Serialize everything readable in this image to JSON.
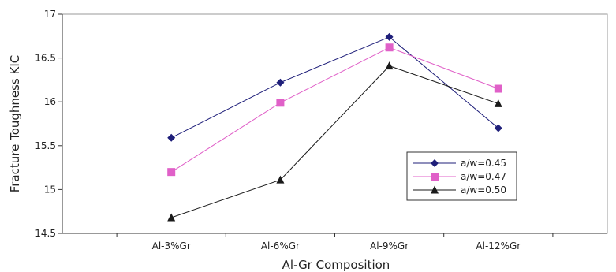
{
  "chart_data": {
    "type": "line",
    "title": "",
    "xlabel": "Al-Gr Composition",
    "ylabel": "Fracture Toughness KIC",
    "categories": [
      "Al-3%Gr",
      "Al-6%Gr",
      "Al-9%Gr",
      "Al-12%Gr"
    ],
    "ylim": [
      14.5,
      17
    ],
    "yticks": [
      "14.5",
      "15",
      "15.5",
      "16",
      "16.5",
      "17"
    ],
    "grid": false,
    "legend_position": "right",
    "series": [
      {
        "name": "a/w=0.45",
        "values": [
          15.59,
          16.22,
          16.74,
          15.7
        ],
        "color": "#1f1f7a",
        "marker": "diamond"
      },
      {
        "name": "a/w=0.47",
        "values": [
          15.2,
          15.99,
          16.62,
          16.15
        ],
        "color": "#e060c8",
        "marker": "square"
      },
      {
        "name": "a/w=0.50",
        "values": [
          14.68,
          15.11,
          16.41,
          15.98
        ],
        "color": "#1a1a1a",
        "marker": "triangle"
      }
    ]
  }
}
